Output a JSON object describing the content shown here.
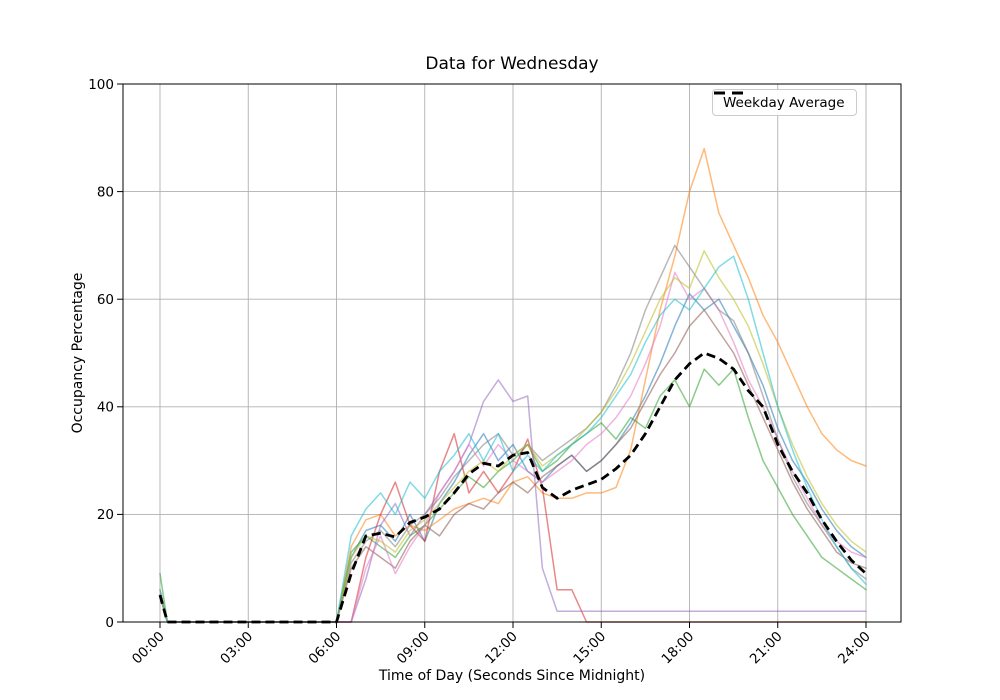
{
  "chart_data": {
    "type": "line",
    "title": "Data for Wednesday",
    "xlabel": "Time of Day (Seconds Since Midnight)",
    "ylabel": "Occupancy Percentage",
    "x_tick_labels": [
      "00:00",
      "03:00",
      "06:00",
      "09:00",
      "12:00",
      "15:00",
      "18:00",
      "21:00",
      "24:00"
    ],
    "x_tick_hours": [
      0,
      3,
      6,
      9,
      12,
      15,
      18,
      21,
      24
    ],
    "y_ticks": [
      0,
      20,
      40,
      60,
      80,
      100
    ],
    "ylim": [
      0,
      100
    ],
    "x_range_hours": [
      0,
      24
    ],
    "grid": true,
    "legend": {
      "label": "Weekday Average",
      "position": "upper right"
    },
    "style": {
      "background": "#ffffff",
      "grid_color": "#b0b0b0",
      "spine_color": "#000000",
      "average_color": "#000000",
      "series_opacity": 0.55
    },
    "time_hours": [
      0,
      0.25,
      0.5,
      1,
      1.5,
      2,
      2.5,
      3,
      3.5,
      4,
      4.5,
      5,
      5.5,
      6,
      6.5,
      7,
      7.5,
      8,
      8.5,
      9,
      9.5,
      10,
      10.5,
      11,
      11.5,
      12,
      12.5,
      13,
      13.5,
      14,
      14.5,
      15,
      15.5,
      16,
      16.5,
      17,
      17.5,
      18,
      18.5,
      19,
      19.5,
      20,
      20.5,
      21,
      21.5,
      22,
      22.5,
      23,
      23.5,
      24
    ],
    "series": [
      {
        "id": "blue",
        "color": "#1f77b4",
        "values": [
          5,
          0,
          0,
          0,
          0,
          0,
          0,
          0,
          0,
          0,
          0,
          0,
          0,
          0,
          12,
          17,
          18,
          15,
          20,
          15,
          22,
          26,
          31,
          35,
          30,
          33,
          28,
          26,
          29,
          31,
          28,
          30,
          33,
          37,
          42,
          48,
          55,
          61,
          58,
          60,
          55,
          50,
          44,
          36,
          30,
          26,
          21,
          17,
          14,
          12
        ]
      },
      {
        "id": "orange",
        "color": "#ff7f0e",
        "values": [
          6,
          0,
          0,
          0,
          0,
          0,
          0,
          0,
          0,
          0,
          0,
          0,
          0,
          0,
          14,
          19,
          20,
          16,
          18,
          17,
          19,
          21,
          22,
          23,
          22,
          26,
          27,
          24,
          23,
          23,
          24,
          24,
          25,
          32,
          45,
          58,
          68,
          80,
          88,
          76,
          70,
          64,
          57,
          52,
          46,
          40,
          35,
          32,
          30,
          29
        ]
      },
      {
        "id": "green",
        "color": "#2ca02c",
        "values": [
          9,
          0,
          0,
          0,
          0,
          0,
          0,
          0,
          0,
          0,
          0,
          0,
          0,
          0,
          13,
          16,
          14,
          12,
          16,
          18,
          21,
          24,
          27,
          25,
          28,
          30,
          33,
          28,
          30,
          33,
          35,
          37,
          34,
          38,
          36,
          42,
          45,
          40,
          47,
          44,
          47,
          38,
          30,
          25,
          20,
          16,
          12,
          10,
          8,
          6
        ]
      },
      {
        "id": "red",
        "color": "#d62728",
        "values": [
          5,
          0,
          0,
          0,
          0,
          0,
          0,
          0,
          0,
          0,
          0,
          0,
          0,
          0,
          0,
          12,
          20,
          26,
          18,
          15,
          28,
          35,
          24,
          28,
          24,
          28,
          34,
          25,
          6,
          6,
          0,
          0,
          0,
          0,
          0,
          0,
          0,
          0,
          0,
          0,
          0,
          0,
          0,
          0,
          0,
          0,
          0,
          0,
          0,
          0
        ]
      },
      {
        "id": "purple",
        "color": "#9467bd",
        "values": [
          5,
          0,
          0,
          0,
          0,
          0,
          0,
          0,
          0,
          0,
          0,
          0,
          0,
          0,
          0,
          8,
          18,
          22,
          16,
          20,
          24,
          28,
          33,
          41,
          45,
          41,
          42,
          10,
          2,
          2,
          2,
          2,
          2,
          2,
          2,
          2,
          2,
          2,
          2,
          2,
          2,
          2,
          2,
          2,
          2,
          2,
          2,
          2,
          2,
          2
        ]
      },
      {
        "id": "brown",
        "color": "#8c564b",
        "values": [
          5,
          0,
          0,
          0,
          0,
          0,
          0,
          0,
          0,
          0,
          0,
          0,
          0,
          0,
          10,
          14,
          12,
          10,
          15,
          18,
          16,
          20,
          22,
          21,
          24,
          26,
          24,
          27,
          29,
          31,
          28,
          30,
          33,
          36,
          41,
          46,
          50,
          55,
          58,
          54,
          50,
          44,
          38,
          32,
          26,
          21,
          17,
          13,
          11,
          10
        ]
      },
      {
        "id": "pink",
        "color": "#e377c2",
        "values": [
          6,
          0,
          0,
          0,
          0,
          0,
          0,
          0,
          0,
          0,
          0,
          0,
          0,
          0,
          0,
          10,
          16,
          9,
          14,
          18,
          24,
          28,
          33,
          29,
          33,
          30,
          28,
          26,
          28,
          30,
          33,
          35,
          38,
          42,
          48,
          55,
          65,
          60,
          62,
          58,
          52,
          45,
          40,
          34,
          28,
          23,
          18,
          15,
          13,
          12
        ]
      },
      {
        "id": "gray",
        "color": "#7f7f7f",
        "values": [
          5,
          0,
          0,
          0,
          0,
          0,
          0,
          0,
          0,
          0,
          0,
          0,
          0,
          0,
          11,
          15,
          17,
          14,
          18,
          20,
          23,
          27,
          30,
          33,
          35,
          31,
          33,
          30,
          32,
          34,
          36,
          39,
          44,
          50,
          58,
          64,
          70,
          66,
          62,
          58,
          56,
          50,
          42,
          34,
          27,
          22,
          18,
          14,
          10,
          8
        ]
      },
      {
        "id": "olive",
        "color": "#bcbd22",
        "values": [
          5,
          0,
          0,
          0,
          0,
          0,
          0,
          0,
          0,
          0,
          0,
          0,
          0,
          0,
          12,
          16,
          15,
          13,
          17,
          19,
          22,
          25,
          28,
          30,
          28,
          31,
          33,
          29,
          31,
          33,
          36,
          39,
          43,
          48,
          54,
          60,
          64,
          62,
          69,
          64,
          60,
          55,
          48,
          40,
          33,
          27,
          22,
          18,
          15,
          13
        ]
      },
      {
        "id": "cyan",
        "color": "#17becf",
        "values": [
          6,
          0,
          0,
          0,
          0,
          0,
          0,
          0,
          0,
          0,
          0,
          0,
          0,
          0,
          16,
          21,
          24,
          20,
          26,
          23,
          28,
          31,
          35,
          30,
          35,
          28,
          31,
          28,
          31,
          33,
          35,
          38,
          42,
          46,
          52,
          57,
          60,
          58,
          62,
          66,
          68,
          60,
          50,
          40,
          32,
          25,
          19,
          14,
          10,
          7
        ]
      }
    ],
    "average": {
      "label": "Weekday Average",
      "color": "#000000",
      "dashed": true,
      "values": [
        5,
        0,
        0,
        0,
        0,
        0,
        0,
        0,
        0,
        0,
        0,
        0,
        0,
        0,
        9,
        16,
        16.5,
        15.8,
        18.5,
        19.5,
        21,
        24,
        27.5,
        29.5,
        29,
        31,
        31.5,
        25,
        23,
        24.5,
        25.5,
        26.5,
        28.5,
        31,
        35,
        40,
        45,
        48,
        50,
        49,
        47,
        43,
        40,
        33,
        28,
        24,
        19,
        15,
        11.5,
        9
      ]
    }
  }
}
